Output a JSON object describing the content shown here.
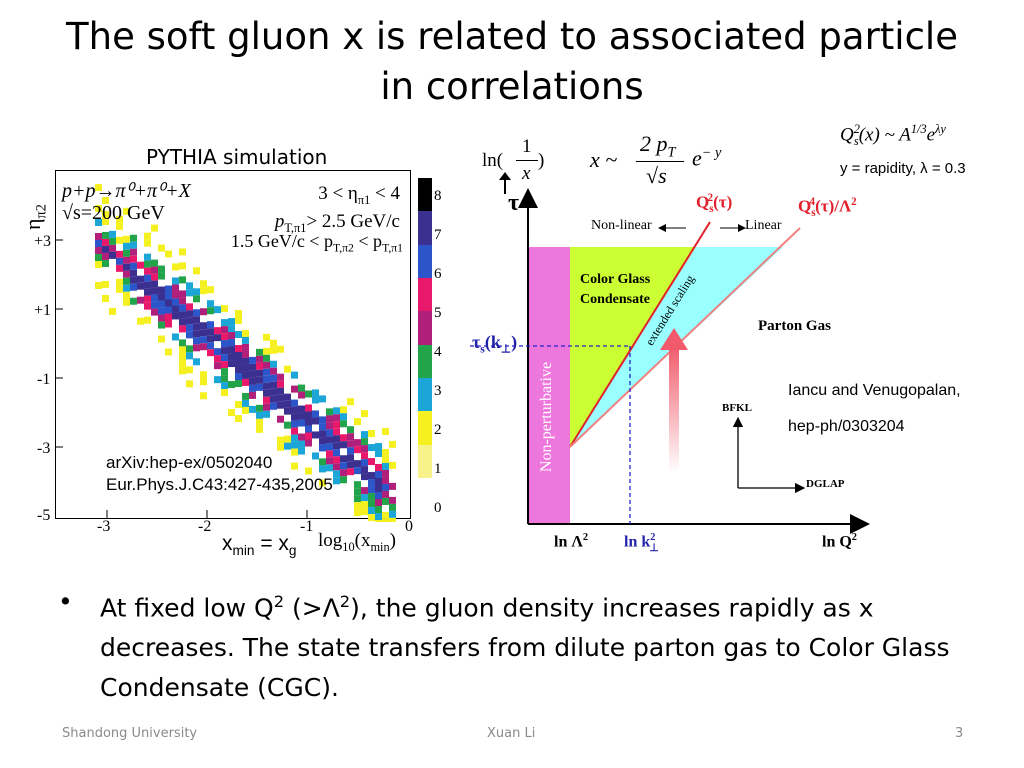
{
  "slide": {
    "title_line1": "The soft gluon x is related to associated particle",
    "title_line2": "in correlations",
    "page_number": "3"
  },
  "left_plot": {
    "caption": "PYTHIA simulation",
    "legend_line1": "p+p→π⁰+π⁰+X",
    "legend_line2": "√s=200 GeV",
    "cut_line1": "3 < η",
    "cut_line1_sub": "π1",
    "cut_line1_end": " < 4",
    "cut_line2_pre": "p",
    "cut_line2_sub": "T,π1",
    "cut_line2_end": "> 2.5 GeV/c",
    "cut_line3": "1.5 GeV/c < p",
    "cut_line3_sub": "T,π2",
    "cut_line3_mid": " < p",
    "cut_line3_sub2": "T,π1",
    "ylabel": "η",
    "ylabel_sub": "π2",
    "xlabel": "log",
    "xlabel_sub": "10",
    "xlabel_end": "(x",
    "xlabel_sub2": "min",
    "xlabel_close": ")",
    "y_ticks": [
      "+3",
      "+1",
      "-1",
      "-3",
      "-5"
    ],
    "x_ticks": [
      "-3",
      "-2",
      "-1",
      "0"
    ],
    "colorbar_ticks": [
      "8",
      "7",
      "6",
      "5",
      "4",
      "3",
      "2",
      "1",
      "0"
    ],
    "colorbar_colors": [
      "#000000",
      "#3b2f8f",
      "#2b55c8",
      "#e8196a",
      "#b01f7a",
      "#22a44a",
      "#1ca6d8",
      "#f5f020",
      "#f7f38a"
    ],
    "ref_line1": "arXiv:hep-ex/0502040",
    "ref_line2": "Eur.Phys.J.C43:427-435,2005",
    "xmin_label_pre": "x",
    "xmin_label_sub1": "min",
    "xmin_label_mid": " = x",
    "xmin_label_sub2": "g"
  },
  "formulas": {
    "ln_pre": "ln(",
    "ln_num": "1",
    "ln_den": "x",
    "ln_post": ")",
    "x_approx": "x ~",
    "frac_num": "2 p",
    "frac_num_sub": "T",
    "frac_den": "√s",
    "exp": "e",
    "exp_sup": "− y",
    "qs_formula": "Q",
    "qs_sup": "2",
    "qs_sub": "s",
    "qs_rest": "(x) ~ A",
    "qs_a_sup": "1/3",
    "qs_e": "e",
    "qs_e_sup": "λy",
    "qs_note": "y = rapidity, λ = 0.3"
  },
  "phase_diagram": {
    "tau_label": "τ",
    "nonlinear_label": "Non-linear",
    "linear_label": "Linear",
    "qs_label": "Q",
    "qs_label_sup": "2",
    "qs_label_sub": "s",
    "qs_label_end": "(τ)",
    "qs4_label": "Q",
    "qs4_sup": "4",
    "qs4_sub": "s",
    "qs4_end": "(τ)/Λ",
    "qs4_end_sup": "2",
    "cgc_line1": "Color Glass",
    "cgc_line2": "Condensate",
    "extended_scaling": "extended scaling",
    "parton_gas": "Parton Gas",
    "nonperturbative": "Non-perturbative",
    "tau_s_label": "τ",
    "tau_s_sub": "s",
    "tau_s_end": "(k",
    "tau_s_sub2": "⊥",
    "tau_s_close": ")",
    "bfkl": "BFKL",
    "dglap": "DGLAP",
    "x_lnlambda": "ln Λ",
    "x_lnlambda_sup": "2",
    "x_lnk": "ln k",
    "x_lnk_sup": "2",
    "x_lnk_sub": "⊥",
    "x_lnq": "ln Q",
    "x_lnq_sup": "2",
    "ref_line1": "Iancu and Venugopalan,",
    "ref_line2": "hep-ph/0303204",
    "colors": {
      "cgc": "#ccff33",
      "parton": "#99ffff",
      "nonpert": "#ee77dd",
      "qs_line": "#e0202a",
      "qs4_line": "#f08080"
    }
  },
  "bullet": {
    "dot": "•",
    "text_a": "At fixed low Q",
    "text_a_sup": "2",
    "text_b": " (>Λ",
    "text_b_sup": "2",
    "text_c": "), the gluon density increases rapidly as x decreases. The state transfers from dilute parton gas to Color Glass Condensate (CGC)."
  },
  "footer": {
    "left": "Shandong University",
    "center": "Xuan Li",
    "right": "3"
  }
}
